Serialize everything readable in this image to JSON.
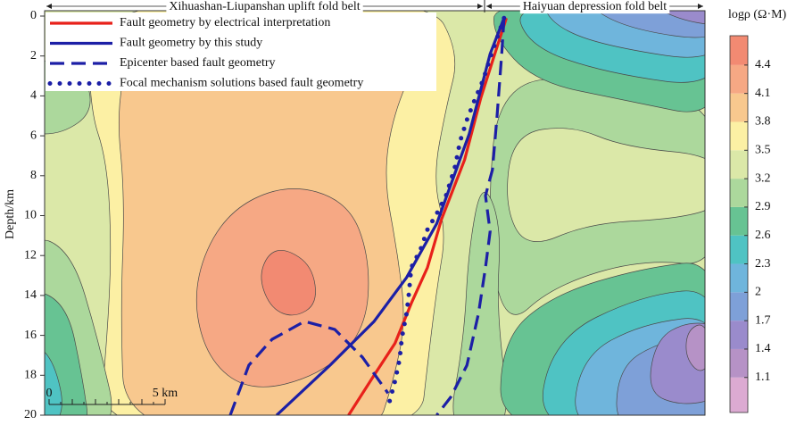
{
  "chart_data": {
    "type": "line",
    "region_labels": [
      "Xihuashan-Liupanshan uplift fold belt",
      "Haiyuan depression fold belt"
    ],
    "ylabel": "Depth/km",
    "xlim": [
      0,
      28.46
    ],
    "ylim": [
      0,
      20
    ],
    "y_inverted": true,
    "yticks": [
      0,
      2,
      4,
      6,
      8,
      10,
      12,
      14,
      16,
      18,
      20
    ],
    "legend": "upper left",
    "scale_bar": {
      "labels": [
        "0",
        "5 km"
      ]
    },
    "series": [
      {
        "name": "Fault geometry by electrical interpretation",
        "color": "#e8211a",
        "linestyle": "solid",
        "x": [
          19.9,
          19.4,
          18.8,
          18.1,
          17.1,
          16.5,
          15.8,
          15.1,
          14.2,
          13.1
        ],
        "values": [
          0.1,
          1.9,
          4.1,
          7.2,
          10.2,
          12.6,
          14.4,
          16.4,
          18.0,
          20.0
        ]
      },
      {
        "name": "Fault geometry by this study",
        "color": "#1c1fa6",
        "linestyle": "solid",
        "x": [
          19.8,
          19.2,
          18.3,
          16.9,
          15.6,
          14.2,
          12.3,
          10.0
        ],
        "values": [
          0.1,
          1.9,
          5.9,
          10.4,
          13.1,
          15.3,
          17.5,
          20.0
        ]
      },
      {
        "name": "Epicenter based fault geometry",
        "color": "#1c1fa6",
        "linestyle": "dashed",
        "x": [
          19.8,
          19.7,
          19.5,
          19.3,
          19.0,
          19.2,
          19.0,
          18.7,
          18.2,
          17.5,
          16.9,
          null,
          8.0,
          8.8,
          9.8,
          11.2,
          12.5,
          13.7,
          14.8
        ],
        "values": [
          0.1,
          1.9,
          5.0,
          7.7,
          9.0,
          10.8,
          12.6,
          14.9,
          17.5,
          19.1,
          20.0,
          null,
          20.0,
          17.5,
          16.2,
          15.3,
          15.7,
          17.1,
          18.9
        ]
      },
      {
        "name": "Focal mechanism solutions based fault geometry",
        "color": "#1c1fa6",
        "linestyle": "dotted",
        "x": [
          19.8,
          19.2,
          18.9,
          18.5,
          18.2,
          17.9,
          17.7,
          17.3,
          16.9,
          16.5,
          16.2,
          15.8,
          15.7,
          15.6,
          15.4,
          15.3,
          15.1,
          14.8
        ],
        "values": [
          0.1,
          2.1,
          3.2,
          4.3,
          5.2,
          6.3,
          7.5,
          9.0,
          9.9,
          10.7,
          11.7,
          12.6,
          13.9,
          14.9,
          16.1,
          17.2,
          18.3,
          19.6
        ]
      }
    ],
    "colorbar": {
      "label": "logρ (Ω·M)",
      "clim": [
        0.73,
        4.71
      ],
      "ticks": [
        1.1,
        1.4,
        1.7,
        2.0,
        2.3,
        2.6,
        2.9,
        3.2,
        3.5,
        3.8,
        4.1,
        4.4
      ],
      "colors": [
        "#dcaad2",
        "#b692c6",
        "#9a8bcc",
        "#7ea0d8",
        "#6fb5dc",
        "#4fc3c3",
        "#67c393",
        "#acd89c",
        "#dbe8a8",
        "#fcf0a4",
        "#f8c88e",
        "#f6a884",
        "#f28a72"
      ]
    }
  }
}
